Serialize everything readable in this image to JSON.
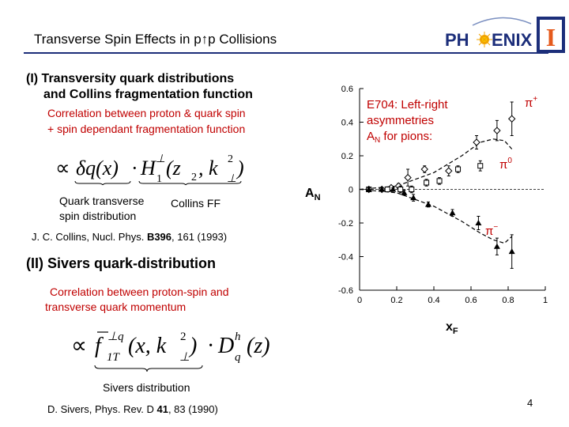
{
  "header": {
    "title": "Transverse Spin Effects in p↑p Collisions",
    "logo_prefix": "PH",
    "logo_suffix": "ENIX",
    "logo_mark": "I"
  },
  "section1": {
    "heading_line1": "(I) Transversity quark distributions",
    "heading_line2": "and Collins fragmentation function",
    "desc_line1": "Correlation between proton & quark spin",
    "desc_line2": "+ spin dependant fragmentation function",
    "formula_prop": "∝",
    "formula_delta_q": "δq(x)",
    "formula_dot1": "·",
    "formula_H": "H",
    "formula_H_sup": "⊥",
    "formula_H_sub": "1",
    "formula_H_args": "(z",
    "formula_z_sub": "2",
    "formula_comma": ", k",
    "formula_k_sup": "2",
    "formula_k_sub": "⊥",
    "formula_close": ")",
    "label_qt_line1": "Quark transverse",
    "label_qt_line2": "spin distribution",
    "label_collins": "Collins FF",
    "ref_prefix": "J. C. Collins, Nucl. Phys. ",
    "ref_bold": "B396",
    "ref_suffix": ", 161 (1993)"
  },
  "section2": {
    "heading": "(II) Sivers quark-distribution",
    "desc_line1": "Correlation between proton-spin and",
    "desc_line2": "transverse quark momentum",
    "formula_prop": "∝",
    "formula_f": "f",
    "formula_f_sup": "⊥q",
    "formula_f_sub": "1T",
    "formula_f_args": "(x, k",
    "formula_k_sup": "2",
    "formula_k_sub": "⊥",
    "formula_f_close": ")",
    "formula_dot": "·",
    "formula_D": "D",
    "formula_D_sup": "h",
    "formula_D_sub": "q",
    "formula_D_args": "(z)",
    "label_sivers": "Sivers distribution",
    "ref_prefix": "D. Sivers, Phys. Rev. D ",
    "ref_bold": "41",
    "ref_suffix": ", 83 (1990)"
  },
  "page_number": "4",
  "chart_data": {
    "type": "scatter",
    "title_line1": "E704: Left-right",
    "title_line2": "asymmetries",
    "title_line3_main": "A",
    "title_line3_sub": "N",
    "title_line3_rest": " for pions:",
    "xlabel_main": "x",
    "xlabel_sub": "F",
    "ylabel_main": "A",
    "ylabel_sub": "N",
    "xlim": [
      0,
      1
    ],
    "ylim": [
      -0.6,
      0.6
    ],
    "xticks": [
      0,
      0.2,
      0.4,
      0.6,
      0.8,
      1
    ],
    "xtick_labels": [
      "0",
      "0.2",
      "0.4",
      "0.6",
      "0.8",
      "1"
    ],
    "yticks": [
      -0.6,
      -0.4,
      -0.2,
      0,
      0.2,
      0.4,
      0.6
    ],
    "ytick_labels": [
      "-0.6",
      "-0.4",
      "-0.2",
      "0",
      "0.2",
      "0.4",
      "0.6"
    ],
    "label_color": "#c00000",
    "series": [
      {
        "name": "π+",
        "name_main": "π",
        "name_sup": "+",
        "marker": "diamond",
        "x": [
          0.05,
          0.12,
          0.17,
          0.21,
          0.26,
          0.35,
          0.48,
          0.63,
          0.74,
          0.82
        ],
        "y": [
          0.0,
          0.0,
          0.01,
          0.02,
          0.07,
          0.12,
          0.11,
          0.28,
          0.35,
          0.42
        ],
        "err": [
          0.01,
          0.01,
          0.01,
          0.015,
          0.05,
          0.02,
          0.03,
          0.04,
          0.06,
          0.1
        ]
      },
      {
        "name": "π0",
        "name_main": "π",
        "name_sup": "0",
        "marker": "square",
        "x": [
          0.05,
          0.15,
          0.22,
          0.28,
          0.36,
          0.43,
          0.53,
          0.65
        ],
        "y": [
          0.0,
          0.0,
          0.0,
          0.0,
          0.04,
          0.05,
          0.12,
          0.14
        ],
        "err": [
          0.01,
          0.01,
          0.02,
          0.02,
          0.02,
          0.02,
          0.02,
          0.03
        ]
      },
      {
        "name": "π−",
        "name_main": "π",
        "name_sup": "−",
        "marker": "triangle",
        "x": [
          0.05,
          0.12,
          0.18,
          0.24,
          0.29,
          0.37,
          0.5,
          0.64,
          0.74,
          0.82
        ],
        "y": [
          0.0,
          0.0,
          0.0,
          -0.02,
          -0.05,
          -0.09,
          -0.14,
          -0.2,
          -0.34,
          -0.37
        ],
        "err": [
          0.01,
          0.01,
          0.01,
          0.015,
          0.02,
          0.015,
          0.02,
          0.04,
          0.05,
          0.1
        ]
      }
    ],
    "fits": [
      {
        "x": [
          0.0,
          0.2,
          0.4,
          0.55,
          0.65,
          0.72,
          0.78,
          0.82
        ],
        "y": [
          0.0,
          0.02,
          0.1,
          0.2,
          0.28,
          0.3,
          0.29,
          0.24
        ]
      },
      {
        "x": [
          0.0,
          0.2,
          0.4,
          0.55,
          0.65,
          0.72,
          0.78,
          0.82
        ],
        "y": [
          0.0,
          -0.02,
          -0.1,
          -0.19,
          -0.26,
          -0.3,
          -0.32,
          -0.28
        ]
      }
    ]
  }
}
